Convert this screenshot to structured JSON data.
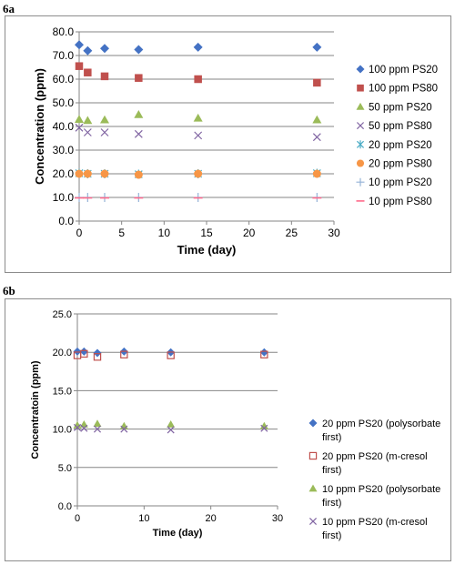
{
  "panels": [
    {
      "label": "6a"
    },
    {
      "label": "6b"
    }
  ],
  "chart_data": [
    {
      "type": "scatter",
      "panel": "6a",
      "xlabel": "Time (day)",
      "ylabel": "Concentration (ppm)",
      "xlim": [
        0,
        30
      ],
      "ylim": [
        0,
        80
      ],
      "xticks": [
        "0",
        "5",
        "10",
        "15",
        "20",
        "25",
        "30"
      ],
      "yticks": [
        "0.0",
        "10.0",
        "20.0",
        "30.0",
        "40.0",
        "50.0",
        "60.0",
        "70.0",
        "80.0"
      ],
      "grid": "horizontal",
      "legend": "right",
      "series": [
        {
          "name": "100 ppm PS20",
          "marker": "diamond",
          "color": "#4472c4",
          "x": [
            0,
            1,
            3,
            7,
            14,
            28
          ],
          "y": [
            74.5,
            72.0,
            73.0,
            72.5,
            73.5,
            73.5
          ]
        },
        {
          "name": "100 ppm PS80",
          "marker": "square",
          "color": "#c0504d",
          "x": [
            0,
            1,
            3,
            7,
            14,
            28
          ],
          "y": [
            65.5,
            62.8,
            61.2,
            60.5,
            60.0,
            58.5
          ]
        },
        {
          "name": "50 ppm PS20",
          "marker": "triangle",
          "color": "#9bbb59",
          "x": [
            0,
            1,
            3,
            7,
            14,
            28
          ],
          "y": [
            43.0,
            42.5,
            42.8,
            45.0,
            43.5,
            42.8
          ]
        },
        {
          "name": "50 ppm PS80",
          "marker": "x",
          "color": "#8064a2",
          "x": [
            0,
            1,
            3,
            7,
            14,
            28
          ],
          "y": [
            39.5,
            37.5,
            37.5,
            36.8,
            36.2,
            35.5
          ]
        },
        {
          "name": "20 ppm PS20",
          "marker": "star",
          "color": "#4bacc6",
          "x": [
            0,
            1,
            3,
            7,
            14,
            28
          ],
          "y": [
            20.2,
            20.0,
            20.0,
            19.8,
            20.0,
            20.2
          ]
        },
        {
          "name": "20 ppm PS80",
          "marker": "circle",
          "color": "#f79646",
          "x": [
            0,
            1,
            3,
            7,
            14,
            28
          ],
          "y": [
            20.0,
            20.0,
            20.0,
            19.6,
            20.0,
            20.0
          ]
        },
        {
          "name": "10 ppm PS20",
          "marker": "plus",
          "color": "#95b3d7",
          "x": [
            0,
            1,
            3,
            7,
            14,
            28
          ],
          "y": [
            10.0,
            10.0,
            10.0,
            10.0,
            10.0,
            10.0
          ]
        },
        {
          "name": "10 ppm PS80",
          "marker": "dash",
          "color": "#ff6a8a",
          "x": [
            0,
            1,
            3,
            7,
            14,
            28
          ],
          "y": [
            9.8,
            9.8,
            9.8,
            9.8,
            9.8,
            9.8
          ]
        }
      ]
    },
    {
      "type": "scatter",
      "panel": "6b",
      "xlabel": "Time (day)",
      "ylabel": "Concentratoin (ppm)",
      "xlim": [
        0,
        30
      ],
      "ylim": [
        0,
        25
      ],
      "xticks": [
        "0",
        "10",
        "20",
        "30"
      ],
      "yticks": [
        "0.0",
        "5.0",
        "10.0",
        "15.0",
        "20.0",
        "25.0"
      ],
      "grid": "horizontal",
      "legend": "right",
      "series": [
        {
          "name_lines": [
            "20 ppm PS20 (polysorbate",
            "first)"
          ],
          "marker": "diamond",
          "color": "#4472c4",
          "x": [
            0,
            1,
            3,
            7,
            14,
            28
          ],
          "y": [
            20.1,
            20.1,
            19.9,
            20.1,
            20.0,
            20.0
          ]
        },
        {
          "name_lines": [
            "20 ppm PS20 (m-cresol",
            "first)"
          ],
          "marker": "opensquare",
          "color": "#c0504d",
          "x": [
            0,
            1,
            3,
            7,
            14,
            28
          ],
          "y": [
            19.6,
            19.8,
            19.4,
            19.7,
            19.6,
            19.7
          ]
        },
        {
          "name_lines": [
            "10 ppm PS20 (polysorbate",
            "first)"
          ],
          "marker": "triangle",
          "color": "#9bbb59",
          "x": [
            0,
            1,
            3,
            7,
            14,
            28
          ],
          "y": [
            10.5,
            10.6,
            10.7,
            10.4,
            10.6,
            10.4
          ]
        },
        {
          "name_lines": [
            "10 ppm PS20 (m-cresol",
            "first)"
          ],
          "marker": "x",
          "color": "#8064a2",
          "x": [
            0,
            1,
            3,
            7,
            14,
            28
          ],
          "y": [
            10.2,
            10.1,
            10.0,
            10.0,
            9.9,
            10.1
          ]
        }
      ]
    }
  ]
}
